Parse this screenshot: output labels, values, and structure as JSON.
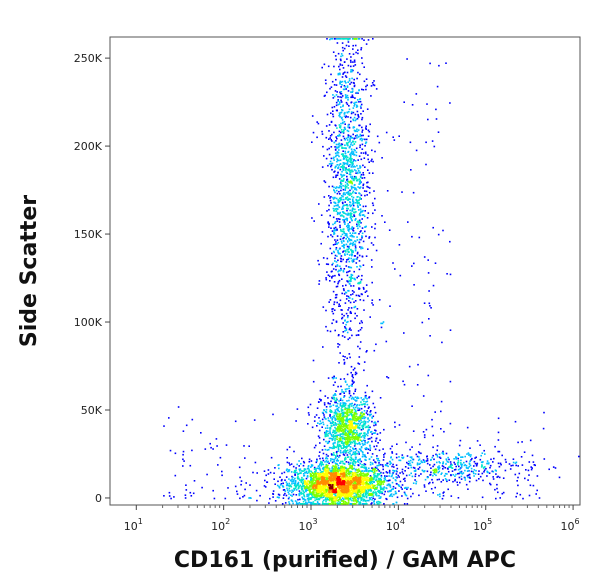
{
  "chart_data": {
    "type": "scatter",
    "subtype": "flow-cytometry density dot plot",
    "xlabel": "CD161 (purified) / GAM APC",
    "ylabel": "Side Scatter",
    "x_scale": "log",
    "x_range": [
      5,
      1200000
    ],
    "y_range": [
      -4000,
      262000
    ],
    "x_ticks": [
      {
        "value": 10,
        "label": "10",
        "exp": "1"
      },
      {
        "value": 100,
        "label": "10",
        "exp": "2"
      },
      {
        "value": 1000,
        "label": "10",
        "exp": "3"
      },
      {
        "value": 10000,
        "label": "10",
        "exp": "4"
      },
      {
        "value": 100000,
        "label": "10",
        "exp": "5"
      },
      {
        "value": 1000000,
        "label": "10",
        "exp": "6"
      }
    ],
    "y_ticks": [
      {
        "value": 0,
        "label": "0"
      },
      {
        "value": 50000,
        "label": "50K"
      },
      {
        "value": 100000,
        "label": "100K"
      },
      {
        "value": 150000,
        "label": "150K"
      },
      {
        "value": 200000,
        "label": "200K"
      },
      {
        "value": 250000,
        "label": "250K"
      }
    ],
    "grid": false,
    "colormap": [
      "#00008b",
      "#0000ff",
      "#00bfff",
      "#00e5cc",
      "#7fff00",
      "#ffff00",
      "#ff8c00",
      "#ff0000",
      "#8b0000"
    ],
    "populations": [
      {
        "x_center": 2000,
        "y_center": 8000,
        "x_spread_log": 0.28,
        "y_spread": 6000,
        "density": "very high"
      },
      {
        "x_center": 2600,
        "y_center": 175000,
        "x_spread_log": 0.12,
        "y_spread": 45000,
        "density": "medium"
      },
      {
        "x_center": 2600,
        "y_center": 40000,
        "x_spread_log": 0.15,
        "y_spread": 10000,
        "density": "medium-high"
      },
      {
        "x_center": 30000,
        "y_center": 18000,
        "x_spread_log": 0.5,
        "y_spread": 5000,
        "density": "low"
      }
    ]
  }
}
